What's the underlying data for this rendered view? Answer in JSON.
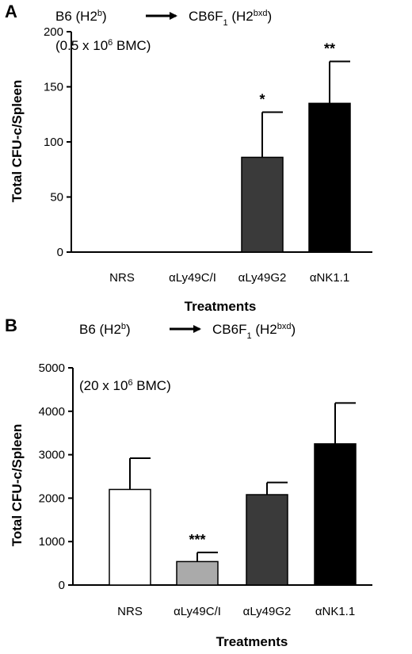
{
  "chart_data": [
    {
      "type": "bar",
      "panel_label": "A",
      "annotation_line1": {
        "donor": "B6 (H2",
        "donor_sup": "b",
        "donor_close": ")",
        "recipient": "CB6F",
        "recipient_sub": "1",
        "recipient_mid": " (H2",
        "recipient_sup": "bxd",
        "recipient_close": ")"
      },
      "annotation_line2": {
        "pre": "(0.5 x 10",
        "sup": "6",
        "post": " BMC)"
      },
      "categories": [
        "NRS",
        "αLy49C/I",
        "αLy49G2",
        "αNK1.1"
      ],
      "values": [
        0,
        0,
        86,
        135
      ],
      "errors": [
        0,
        0,
        41,
        38
      ],
      "significance": [
        "",
        "",
        "*",
        "**"
      ],
      "bar_colors": [
        "#ffffff",
        "#aaaaaa",
        "#3a3a3a",
        "#000000"
      ],
      "xlabel": "Treatments",
      "ylabel": "Total CFU-c/Spleen",
      "ylim": [
        0,
        200
      ],
      "yticks": [
        0,
        50,
        100,
        150,
        200
      ]
    },
    {
      "type": "bar",
      "panel_label": "B",
      "annotation_line1": {
        "donor": "B6 (H2",
        "donor_sup": "b",
        "donor_close": ")",
        "recipient": "CB6F",
        "recipient_sub": "1",
        "recipient_mid": " (H2",
        "recipient_sup": "bxd",
        "recipient_close": ")"
      },
      "annotation_line2": {
        "pre": "(20 x 10",
        "sup": "6",
        "post": " BMC)"
      },
      "categories": [
        "NRS",
        "αLy49C/I",
        "αLy49G2",
        "αNK1.1"
      ],
      "values": [
        2200,
        540,
        2080,
        3250
      ],
      "errors": [
        720,
        210,
        280,
        940
      ],
      "significance": [
        "",
        "***",
        "",
        ""
      ],
      "bar_colors": [
        "#ffffff",
        "#aaaaaa",
        "#3a3a3a",
        "#000000"
      ],
      "xlabel": "Treatments",
      "ylabel": "Total CFU-c/Spleen",
      "ylim": [
        0,
        5000
      ],
      "yticks": [
        0,
        1000,
        2000,
        3000,
        4000,
        5000
      ]
    }
  ]
}
